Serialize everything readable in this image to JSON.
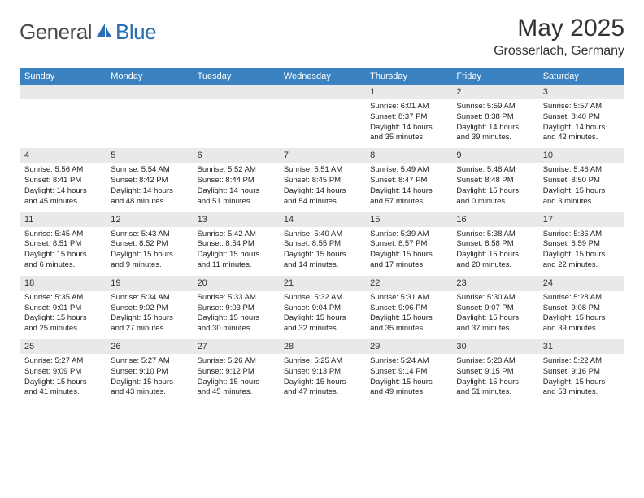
{
  "logo": {
    "general": "General",
    "blue": "Blue"
  },
  "title": "May 2025",
  "location": "Grosserlach, Germany",
  "colors": {
    "header_bg": "#3b83c0",
    "header_text": "#ffffff",
    "daynum_bg": "#e9e9e9",
    "text": "#222222",
    "logo_gray": "#4a4a4a",
    "logo_blue": "#2a6db0"
  },
  "day_headers": [
    "Sunday",
    "Monday",
    "Tuesday",
    "Wednesday",
    "Thursday",
    "Friday",
    "Saturday"
  ],
  "weeks": [
    [
      {
        "n": "",
        "sr": "",
        "ss": "",
        "d1": "",
        "d2": ""
      },
      {
        "n": "",
        "sr": "",
        "ss": "",
        "d1": "",
        "d2": ""
      },
      {
        "n": "",
        "sr": "",
        "ss": "",
        "d1": "",
        "d2": ""
      },
      {
        "n": "",
        "sr": "",
        "ss": "",
        "d1": "",
        "d2": ""
      },
      {
        "n": "1",
        "sr": "Sunrise: 6:01 AM",
        "ss": "Sunset: 8:37 PM",
        "d1": "Daylight: 14 hours",
        "d2": "and 35 minutes."
      },
      {
        "n": "2",
        "sr": "Sunrise: 5:59 AM",
        "ss": "Sunset: 8:38 PM",
        "d1": "Daylight: 14 hours",
        "d2": "and 39 minutes."
      },
      {
        "n": "3",
        "sr": "Sunrise: 5:57 AM",
        "ss": "Sunset: 8:40 PM",
        "d1": "Daylight: 14 hours",
        "d2": "and 42 minutes."
      }
    ],
    [
      {
        "n": "4",
        "sr": "Sunrise: 5:56 AM",
        "ss": "Sunset: 8:41 PM",
        "d1": "Daylight: 14 hours",
        "d2": "and 45 minutes."
      },
      {
        "n": "5",
        "sr": "Sunrise: 5:54 AM",
        "ss": "Sunset: 8:42 PM",
        "d1": "Daylight: 14 hours",
        "d2": "and 48 minutes."
      },
      {
        "n": "6",
        "sr": "Sunrise: 5:52 AM",
        "ss": "Sunset: 8:44 PM",
        "d1": "Daylight: 14 hours",
        "d2": "and 51 minutes."
      },
      {
        "n": "7",
        "sr": "Sunrise: 5:51 AM",
        "ss": "Sunset: 8:45 PM",
        "d1": "Daylight: 14 hours",
        "d2": "and 54 minutes."
      },
      {
        "n": "8",
        "sr": "Sunrise: 5:49 AM",
        "ss": "Sunset: 8:47 PM",
        "d1": "Daylight: 14 hours",
        "d2": "and 57 minutes."
      },
      {
        "n": "9",
        "sr": "Sunrise: 5:48 AM",
        "ss": "Sunset: 8:48 PM",
        "d1": "Daylight: 15 hours",
        "d2": "and 0 minutes."
      },
      {
        "n": "10",
        "sr": "Sunrise: 5:46 AM",
        "ss": "Sunset: 8:50 PM",
        "d1": "Daylight: 15 hours",
        "d2": "and 3 minutes."
      }
    ],
    [
      {
        "n": "11",
        "sr": "Sunrise: 5:45 AM",
        "ss": "Sunset: 8:51 PM",
        "d1": "Daylight: 15 hours",
        "d2": "and 6 minutes."
      },
      {
        "n": "12",
        "sr": "Sunrise: 5:43 AM",
        "ss": "Sunset: 8:52 PM",
        "d1": "Daylight: 15 hours",
        "d2": "and 9 minutes."
      },
      {
        "n": "13",
        "sr": "Sunrise: 5:42 AM",
        "ss": "Sunset: 8:54 PM",
        "d1": "Daylight: 15 hours",
        "d2": "and 11 minutes."
      },
      {
        "n": "14",
        "sr": "Sunrise: 5:40 AM",
        "ss": "Sunset: 8:55 PM",
        "d1": "Daylight: 15 hours",
        "d2": "and 14 minutes."
      },
      {
        "n": "15",
        "sr": "Sunrise: 5:39 AM",
        "ss": "Sunset: 8:57 PM",
        "d1": "Daylight: 15 hours",
        "d2": "and 17 minutes."
      },
      {
        "n": "16",
        "sr": "Sunrise: 5:38 AM",
        "ss": "Sunset: 8:58 PM",
        "d1": "Daylight: 15 hours",
        "d2": "and 20 minutes."
      },
      {
        "n": "17",
        "sr": "Sunrise: 5:36 AM",
        "ss": "Sunset: 8:59 PM",
        "d1": "Daylight: 15 hours",
        "d2": "and 22 minutes."
      }
    ],
    [
      {
        "n": "18",
        "sr": "Sunrise: 5:35 AM",
        "ss": "Sunset: 9:01 PM",
        "d1": "Daylight: 15 hours",
        "d2": "and 25 minutes."
      },
      {
        "n": "19",
        "sr": "Sunrise: 5:34 AM",
        "ss": "Sunset: 9:02 PM",
        "d1": "Daylight: 15 hours",
        "d2": "and 27 minutes."
      },
      {
        "n": "20",
        "sr": "Sunrise: 5:33 AM",
        "ss": "Sunset: 9:03 PM",
        "d1": "Daylight: 15 hours",
        "d2": "and 30 minutes."
      },
      {
        "n": "21",
        "sr": "Sunrise: 5:32 AM",
        "ss": "Sunset: 9:04 PM",
        "d1": "Daylight: 15 hours",
        "d2": "and 32 minutes."
      },
      {
        "n": "22",
        "sr": "Sunrise: 5:31 AM",
        "ss": "Sunset: 9:06 PM",
        "d1": "Daylight: 15 hours",
        "d2": "and 35 minutes."
      },
      {
        "n": "23",
        "sr": "Sunrise: 5:30 AM",
        "ss": "Sunset: 9:07 PM",
        "d1": "Daylight: 15 hours",
        "d2": "and 37 minutes."
      },
      {
        "n": "24",
        "sr": "Sunrise: 5:28 AM",
        "ss": "Sunset: 9:08 PM",
        "d1": "Daylight: 15 hours",
        "d2": "and 39 minutes."
      }
    ],
    [
      {
        "n": "25",
        "sr": "Sunrise: 5:27 AM",
        "ss": "Sunset: 9:09 PM",
        "d1": "Daylight: 15 hours",
        "d2": "and 41 minutes."
      },
      {
        "n": "26",
        "sr": "Sunrise: 5:27 AM",
        "ss": "Sunset: 9:10 PM",
        "d1": "Daylight: 15 hours",
        "d2": "and 43 minutes."
      },
      {
        "n": "27",
        "sr": "Sunrise: 5:26 AM",
        "ss": "Sunset: 9:12 PM",
        "d1": "Daylight: 15 hours",
        "d2": "and 45 minutes."
      },
      {
        "n": "28",
        "sr": "Sunrise: 5:25 AM",
        "ss": "Sunset: 9:13 PM",
        "d1": "Daylight: 15 hours",
        "d2": "and 47 minutes."
      },
      {
        "n": "29",
        "sr": "Sunrise: 5:24 AM",
        "ss": "Sunset: 9:14 PM",
        "d1": "Daylight: 15 hours",
        "d2": "and 49 minutes."
      },
      {
        "n": "30",
        "sr": "Sunrise: 5:23 AM",
        "ss": "Sunset: 9:15 PM",
        "d1": "Daylight: 15 hours",
        "d2": "and 51 minutes."
      },
      {
        "n": "31",
        "sr": "Sunrise: 5:22 AM",
        "ss": "Sunset: 9:16 PM",
        "d1": "Daylight: 15 hours",
        "d2": "and 53 minutes."
      }
    ]
  ]
}
